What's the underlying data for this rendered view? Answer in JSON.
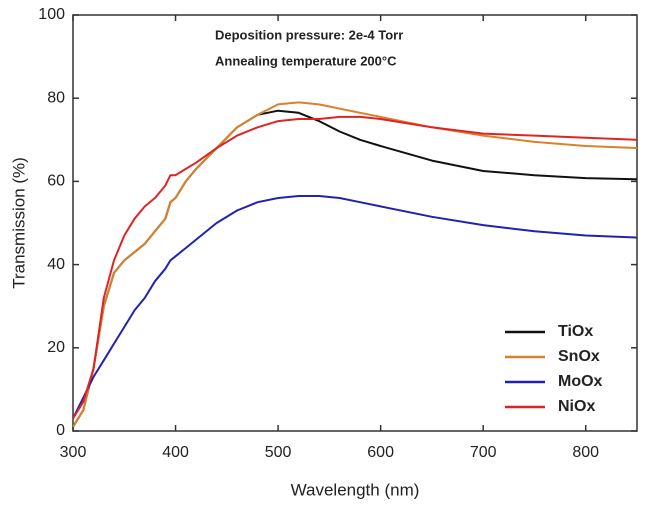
{
  "chart_data": {
    "type": "line",
    "annotations": [
      "Deposition pressure: 2e-4 Torr",
      "Annealing temperature 200°C"
    ],
    "x_label": "Wavelength (nm)",
    "y_label": "Transmission (%)",
    "x": [
      300,
      310,
      320,
      330,
      340,
      350,
      360,
      370,
      380,
      390,
      395,
      400,
      410,
      420,
      440,
      460,
      480,
      500,
      520,
      540,
      560,
      580,
      600,
      650,
      700,
      750,
      800,
      850
    ],
    "series": [
      {
        "name": "TiOx",
        "color": "#111111",
        "values": [
          1,
          5,
          15,
          30,
          38,
          41,
          43,
          45,
          48,
          51,
          55,
          56,
          60,
          63,
          68,
          73,
          76,
          77,
          76.5,
          74.5,
          72,
          70,
          68.5,
          65,
          62.5,
          61.5,
          60.8,
          60.5
        ]
      },
      {
        "name": "SnOx",
        "color": "#d9822b",
        "values": [
          1,
          5,
          15,
          30,
          38,
          41,
          43,
          45,
          48,
          51,
          55,
          56,
          60,
          63,
          68,
          73,
          76,
          78.5,
          79,
          78.5,
          77.5,
          76.5,
          75.5,
          73,
          71,
          69.5,
          68.5,
          68
        ]
      },
      {
        "name": "MoOx",
        "color": "#2222b0",
        "values": [
          3,
          8,
          13,
          17,
          21,
          25,
          29,
          32,
          36,
          39,
          41,
          42,
          44,
          46,
          50,
          53,
          55,
          56,
          56.5,
          56.5,
          56,
          55,
          54,
          51.5,
          49.5,
          48,
          47,
          46.5
        ]
      },
      {
        "name": "NiOx",
        "color": "#e02424",
        "values": [
          3,
          7,
          15,
          32,
          41,
          47,
          51,
          54,
          56,
          59,
          61.5,
          61.5,
          63,
          64.5,
          68,
          71,
          73,
          74.5,
          75,
          75,
          75.5,
          75.5,
          75,
          73,
          71.5,
          71,
          70.5,
          70
        ]
      }
    ],
    "xlim": [
      300,
      850
    ],
    "xticks": [
      300,
      400,
      500,
      600,
      700,
      800
    ],
    "ylim": [
      0,
      100
    ],
    "yticks": [
      0,
      20,
      40,
      60,
      80,
      100
    ],
    "legend": "lower right"
  }
}
